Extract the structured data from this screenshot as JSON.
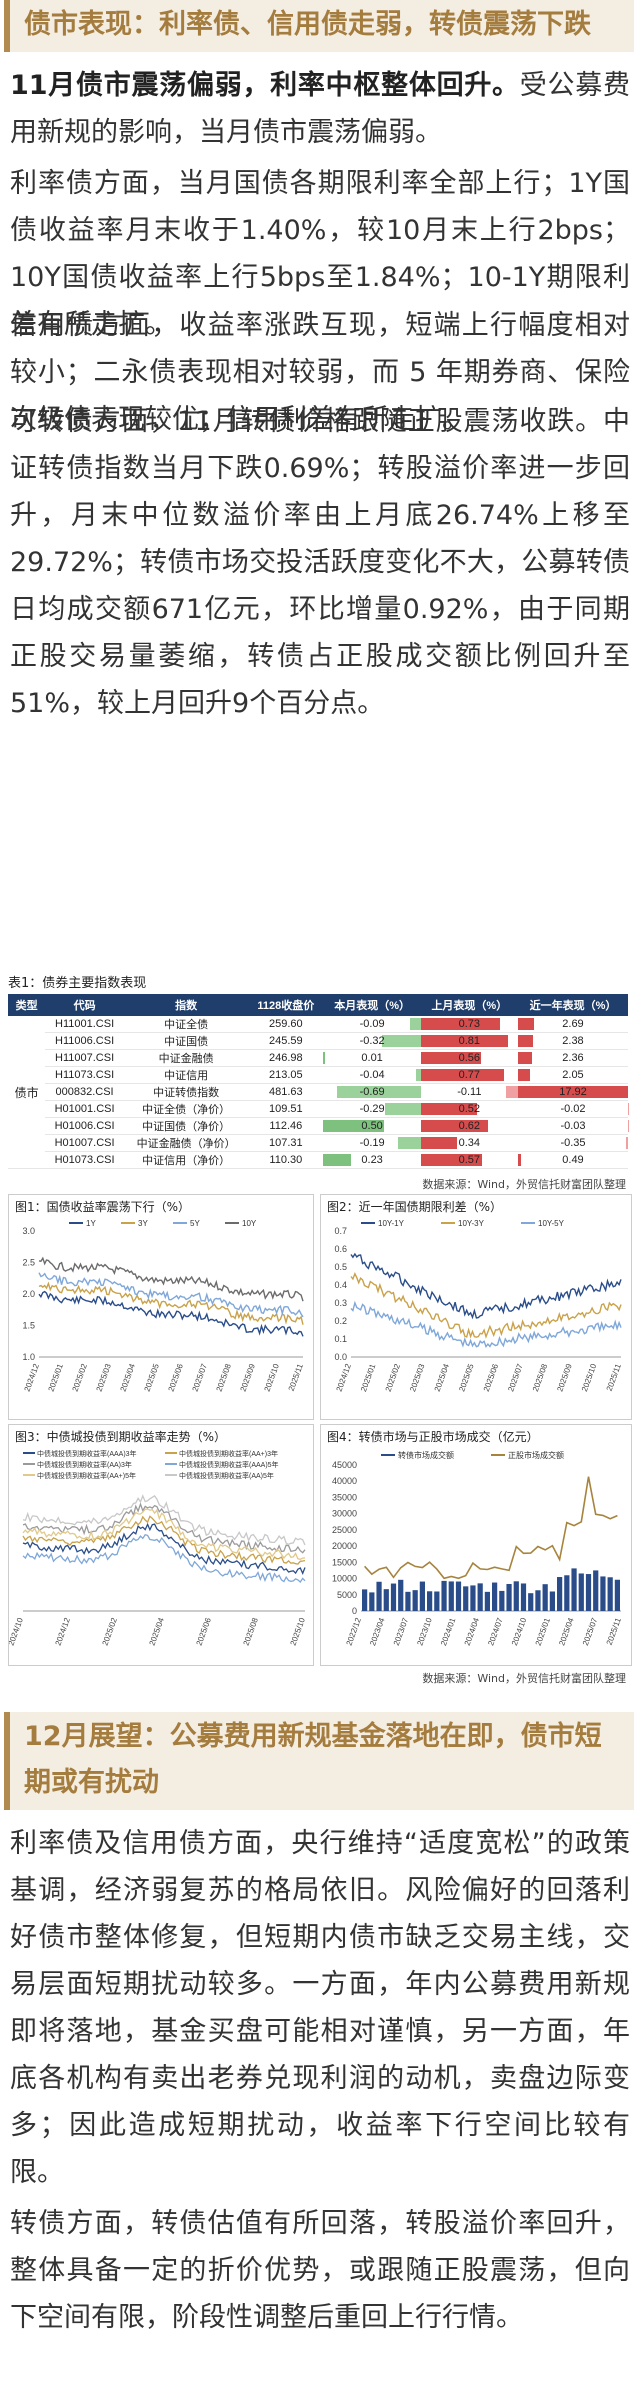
{
  "section1": {
    "heading": "债市表现：利率债、信用债走弱，转债震荡下跌",
    "p1_bold": "11月债市震荡偏弱，利率中枢整体回升。",
    "p1_rest": "受公募费用新规的影响，当月债市震荡偏弱。",
    "p2": "利率债方面，当月国债各期限利率全部上行；1Y国债收益率月末收于1.40%，较10月末上行2bps；10Y国债收益率上行5bps至1.84%；10-1Y期限利差有所走扩。",
    "p3": "信用债方面，收益率涨跌互现，短端上行幅度相对较小；二永债表现相对较弱，而 5 年期券商、保险次级债表现较优；信用利差有所走扩。",
    "p4": "可转债方面，11月转债价格跟随正股震荡收跌。中证转债指数当月下跌0.69%；转股溢价率进一步回升，月末中位数溢价率由上月底26.74%上移至29.72%；转债市场交投活跃度变化不大，公募转债日均成交额671亿元，环比增量0.92%，由于同期正股交易量萎缩，转债占正股成交额比例回升至51%，较上月回升9个百分点。"
  },
  "table": {
    "title": "表1：债券主要指数表现",
    "headers": [
      "类型",
      "代码",
      "指数",
      "1128收盘价",
      "本月表现（%）",
      "上月表现（%）",
      "近一年表现（%）"
    ],
    "category": "债市",
    "rows": [
      {
        "code": "H11001.CSI",
        "name": "中证全债",
        "close": "259.60",
        "m": "-0.09",
        "pm": "0.73",
        "y": "2.69"
      },
      {
        "code": "H11006.CSI",
        "name": "中证国债",
        "close": "245.59",
        "m": "-0.32",
        "pm": "0.81",
        "y": "2.38"
      },
      {
        "code": "H11007.CSI",
        "name": "中证金融债",
        "close": "246.98",
        "m": "0.01",
        "pm": "0.56",
        "y": "2.36"
      },
      {
        "code": "H11073.CSI",
        "name": "中证信用",
        "close": "213.05",
        "m": "-0.04",
        "pm": "0.77",
        "y": "2.05"
      },
      {
        "code": "000832.CSI",
        "name": "中证转债指数",
        "close": "481.63",
        "m": "-0.69",
        "pm": "-0.11",
        "y": "17.92"
      },
      {
        "code": "H01001.CSI",
        "name": "中证全债（净价）",
        "close": "109.51",
        "m": "-0.29",
        "pm": "0.52",
        "y": "-0.02"
      },
      {
        "code": "H01006.CSI",
        "name": "中证国债（净价）",
        "close": "112.46",
        "m": "0.50",
        "pm": "0.62",
        "y": "-0.03"
      },
      {
        "code": "H01007.CSI",
        "name": "中证金融债（净价）",
        "close": "107.31",
        "m": "-0.19",
        "pm": "0.34",
        "y": "-0.35"
      },
      {
        "code": "H01073.CSI",
        "name": "中证信用（净价）",
        "close": "110.30",
        "m": "0.23",
        "pm": "0.57",
        "y": "0.49"
      }
    ],
    "source": "数据来源：Wind，外贸信托财富团队整理"
  },
  "charts": {
    "c1": {
      "title": "图1：国债收益率震荡下行（%）",
      "legend": [
        "1Y",
        "3Y",
        "5Y",
        "10Y"
      ],
      "colors": [
        "#2a4d8a",
        "#c9a24a",
        "#7fa7d9",
        "#6b6b6b"
      ],
      "yticks": [
        "3.0",
        "2.5",
        "2.0",
        "1.5",
        "1.0"
      ],
      "xticks": [
        "2024/12",
        "2025/01",
        "2025/02",
        "2025/03",
        "2025/04",
        "2025/05",
        "2025/06",
        "2025/07",
        "2025/08",
        "2025/09",
        "2025/10",
        "2025/11"
      ]
    },
    "c2": {
      "title": "图2：近一年国债期限利差（%）",
      "legend": [
        "10Y-1Y",
        "10Y-3Y",
        "10Y-5Y"
      ],
      "colors": [
        "#2a4d8a",
        "#c9a24a",
        "#7fa7d9"
      ],
      "yticks": [
        "0.7",
        "0.6",
        "0.5",
        "0.4",
        "0.3",
        "0.2",
        "0.1",
        "0.0"
      ],
      "xticks": [
        "2024/12",
        "2025/01",
        "2025/02",
        "2025/03",
        "2025/04",
        "2025/05",
        "2025/06",
        "2025/07",
        "2025/08",
        "2025/09",
        "2025/10",
        "2025/11"
      ]
    },
    "c3": {
      "title": "图3：中债城投债到期收益率走势（%）",
      "legend": [
        "中债城投债到期收益率(AAA)3年",
        "中债城投债到期收益率(AA+)3年",
        "中债城投债到期收益率(AA)3年",
        "中债城投债到期收益率(AAA)5年",
        "中债城投债到期收益率(AA+)5年",
        "中债城投债到期收益率(AA)5年"
      ],
      "colors": [
        "#2a4d8a",
        "#c9a24a",
        "#9a9a9a",
        "#7fa7d9",
        "#e0c98a",
        "#c8c8c8"
      ],
      "xticks": [
        "2024/10",
        "2024/12",
        "2025/02",
        "2025/04",
        "2025/06",
        "2025/08",
        "2025/10"
      ]
    },
    "c4": {
      "title": "图4：转债市场与正股市场成交（亿元）",
      "legend": [
        "转债市场成交额",
        "正股市场成交额"
      ],
      "colors": [
        "#2a4d8a",
        "#a7843e"
      ],
      "yticks": [
        "45000",
        "40000",
        "35000",
        "30000",
        "25000",
        "20000",
        "15000",
        "10000",
        "5000",
        "0"
      ],
      "xticks": [
        "2022/12",
        "2023/04",
        "2023/07",
        "2023/10",
        "2024/01",
        "2024/04",
        "2024/07",
        "2024/10",
        "2025/01",
        "2025/04",
        "2025/07",
        "2025/11"
      ]
    },
    "source": "数据来源：Wind，外贸信托财富团队整理"
  },
  "section2": {
    "heading": "12月展望：公募费用新规基金落地在即，债市短期或有扰动",
    "p1": "利率债及信用债方面，央行维持“适度宽松”的政策基调，经济弱复苏的格局依旧。风险偏好的回落利好债市整体修复，但短期内债市缺乏交易主线，交易层面短期扰动较多。一方面，年内公募费用新规即将落地，基金买盘可能相对谨慎，另一方面，年底各机构有卖出老券兑现利润的动机，卖盘边际变多；因此造成短期扰动，收益率下行空间比较有限。",
    "p2": "转债方面，转债估值有所回落，转股溢价率回升，整体具备一定的折价优势，或跟随正股震荡，但向下空间有限，阶段性调整后重回上行行情。"
  }
}
